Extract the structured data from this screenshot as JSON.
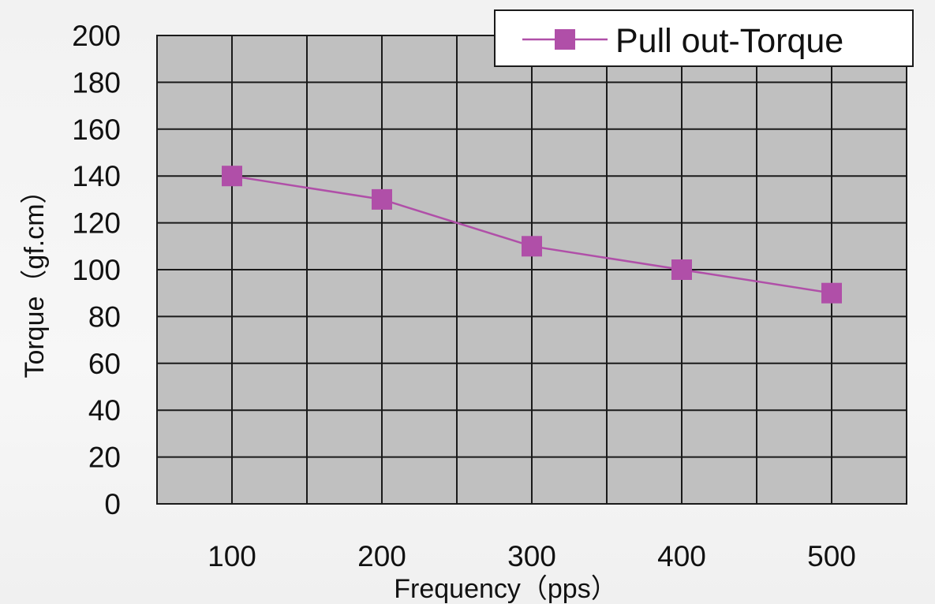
{
  "colors": {
    "plot_background": "#c0c0c0",
    "grid": "#1a1a1a",
    "series": "#b04fa8",
    "legend_background": "#ffffff"
  },
  "chart_data": {
    "type": "line",
    "title": "",
    "xlabel": "Frequency（pps）",
    "ylabel": "Torque（gf.cm）",
    "x": [
      100,
      200,
      300,
      400,
      500
    ],
    "categories": [
      "100",
      "200",
      "300",
      "400",
      "500"
    ],
    "ylim": [
      0,
      200
    ],
    "yticks": [
      0,
      20,
      40,
      60,
      80,
      100,
      120,
      140,
      160,
      180,
      200
    ],
    "grid": true,
    "legend_position": "top-right",
    "marker": "square",
    "series": [
      {
        "name": "Pull out-Torque",
        "values": [
          140,
          130,
          110,
          100,
          90
        ]
      }
    ]
  }
}
